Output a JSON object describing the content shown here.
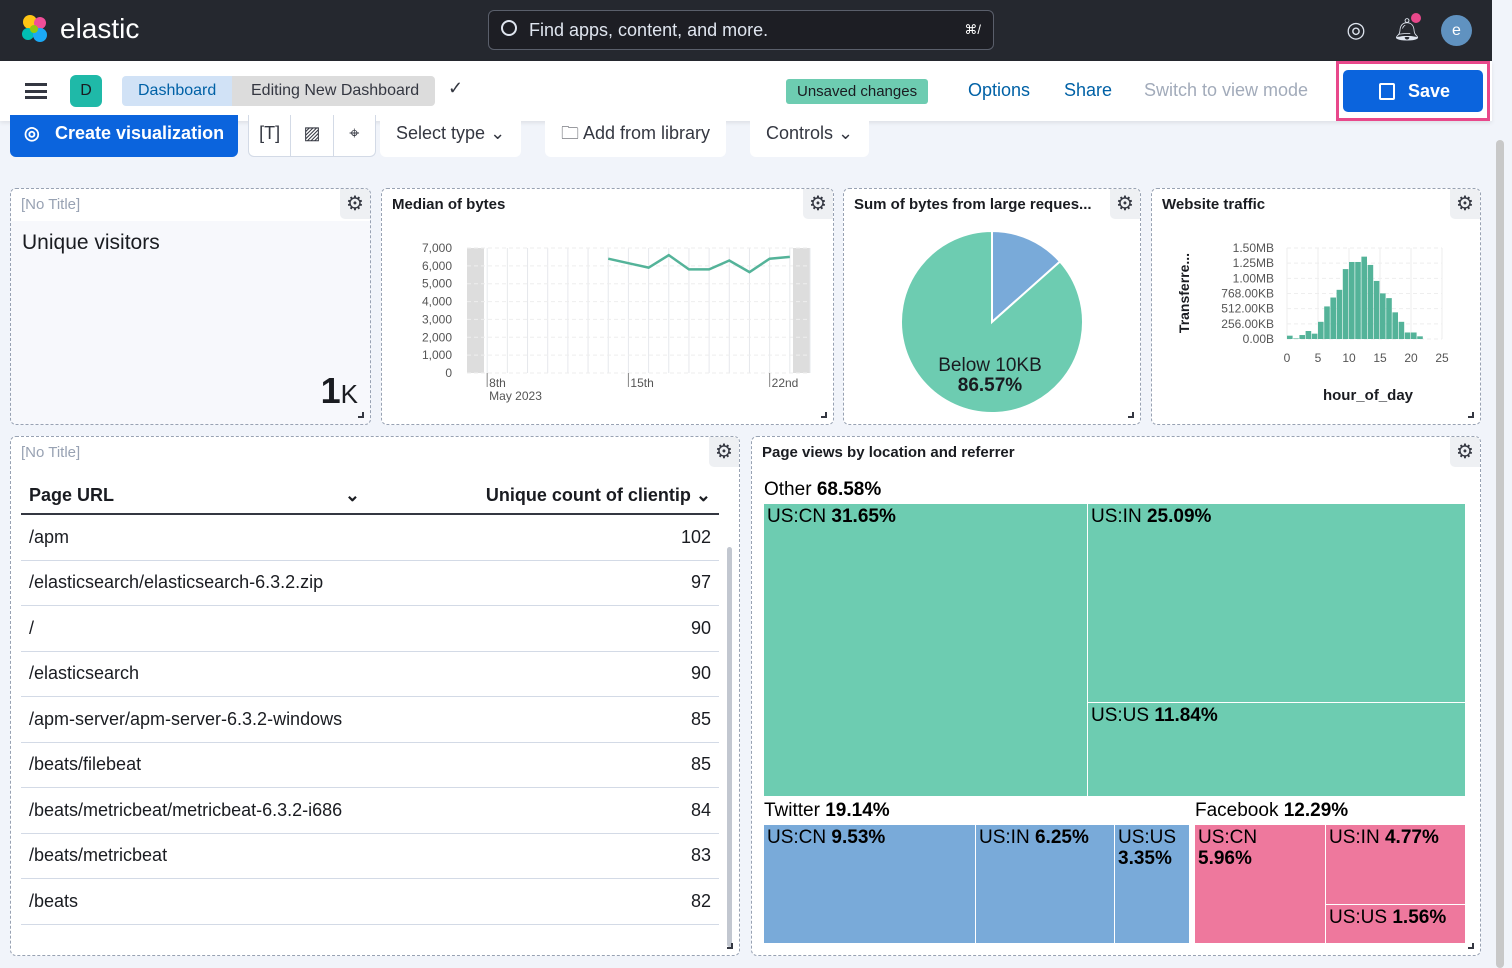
{
  "topbar": {
    "brand": "elastic",
    "search_placeholder": "Find apps, content, and more.",
    "search_shortcut": "⌘/",
    "avatar": "e"
  },
  "subbar": {
    "space_badge": "D",
    "breadcrumbs": [
      "Dashboard",
      "Editing New Dashboard"
    ],
    "unsaved": "Unsaved changes",
    "options": "Options",
    "share": "Share",
    "switch_view": "Switch to view mode",
    "save": "Save"
  },
  "toolbar": {
    "create": "Create visualization",
    "select_type": "Select type",
    "add_library": "Add from library",
    "controls": "Controls"
  },
  "panels": {
    "metric": {
      "title": "[No Title]",
      "label": "Unique visitors",
      "value": "1",
      "unit": "K"
    },
    "median": {
      "title": "Median of bytes"
    },
    "pie": {
      "title": "Sum of bytes from large reques...",
      "label": "Below 10KB",
      "pct": "86.57%"
    },
    "traffic": {
      "title": "Website traffic"
    },
    "table": {
      "title": "[No Title]",
      "col1": "Page URL",
      "col2": "Unique count of clientip",
      "rows": [
        {
          "url": "/apm",
          "count": "102"
        },
        {
          "url": "/elasticsearch/elasticsearch-6.3.2.zip",
          "count": "97"
        },
        {
          "url": "/",
          "count": "90"
        },
        {
          "url": "/elasticsearch",
          "count": "90"
        },
        {
          "url": "/apm-server/apm-server-6.3.2-windows",
          "count": "85"
        },
        {
          "url": "/beats/filebeat",
          "count": "85"
        },
        {
          "url": "/beats/metricbeat/metricbeat-6.3.2-i686",
          "count": "84"
        },
        {
          "url": "/beats/metricbeat",
          "count": "83"
        },
        {
          "url": "/beats",
          "count": "82"
        }
      ]
    },
    "treemap": {
      "title": "Page views by location and referrer"
    }
  },
  "chart_data": [
    {
      "type": "line",
      "title": "Median of bytes",
      "x_tick_labels": [
        "8th",
        "15th",
        "22nd"
      ],
      "x_sublabel": "May 2023",
      "y_ticks": [
        0,
        1000,
        2000,
        3000,
        4000,
        5000,
        6000,
        7000
      ],
      "ylim": [
        0,
        7000
      ],
      "grid": true,
      "color": "#54b399",
      "x": [
        "2023-05-14",
        "2023-05-16",
        "2023-05-17",
        "2023-05-18",
        "2023-05-19",
        "2023-05-20",
        "2023-05-21",
        "2023-05-22",
        "2023-05-23"
      ],
      "values": [
        6400,
        5900,
        6600,
        5800,
        5800,
        6300,
        5650,
        6400,
        6500
      ],
      "xlim": [
        "2023-05-07",
        "2023-05-24"
      ]
    },
    {
      "type": "pie",
      "title": "Sum of bytes from large reques...",
      "slices": [
        {
          "name": "Below 10KB",
          "value": 86.57,
          "color": "#6dccb1"
        },
        {
          "name": "",
          "value": 13.43,
          "color": "#79aad9"
        }
      ]
    },
    {
      "type": "bar",
      "title": "Website traffic",
      "xlabel": "hour_of_day",
      "ylabel": "Transferre...",
      "x_ticks": [
        0,
        5,
        10,
        15,
        20,
        25
      ],
      "y_tick_labels": [
        "0.00B",
        "256.00KB",
        "512.00KB",
        "768.00KB",
        "1.00MB",
        "1.25MB",
        "1.50MB"
      ],
      "ylim_kb": [
        0,
        1536
      ],
      "color": "#54b399",
      "x": [
        0,
        1,
        2,
        3,
        4,
        5,
        6,
        7,
        8,
        9,
        10,
        11,
        12,
        13,
        14,
        15,
        16,
        17,
        18,
        19,
        20,
        21,
        22,
        23
      ],
      "values_kb": [
        56,
        10,
        67,
        135,
        90,
        290,
        550,
        700,
        830,
        1180,
        1300,
        1300,
        1390,
        1250,
        980,
        770,
        690,
        450,
        290,
        110,
        110,
        45,
        0,
        0
      ]
    },
    {
      "type": "treemap",
      "title": "Page views by location and referrer",
      "groups": [
        {
          "name": "Other",
          "pct": "68.58%",
          "color": "#6dccb1",
          "children": [
            {
              "name": "US:CN",
              "pct": "31.65%"
            },
            {
              "name": "US:IN",
              "pct": "25.09%"
            },
            {
              "name": "US:US",
              "pct": "11.84%"
            }
          ]
        },
        {
          "name": "Twitter",
          "pct": "19.14%",
          "color": "#79aad9",
          "children": [
            {
              "name": "US:CN",
              "pct": "9.53%"
            },
            {
              "name": "US:IN",
              "pct": "6.25%"
            },
            {
              "name": "US:US",
              "pct": "3.35%"
            }
          ]
        },
        {
          "name": "Facebook",
          "pct": "12.29%",
          "color": "#ee789d",
          "children": [
            {
              "name": "US:CN",
              "pct": "5.96%"
            },
            {
              "name": "US:IN",
              "pct": "4.77%"
            },
            {
              "name": "US:US",
              "pct": "1.56%"
            }
          ]
        }
      ]
    }
  ]
}
